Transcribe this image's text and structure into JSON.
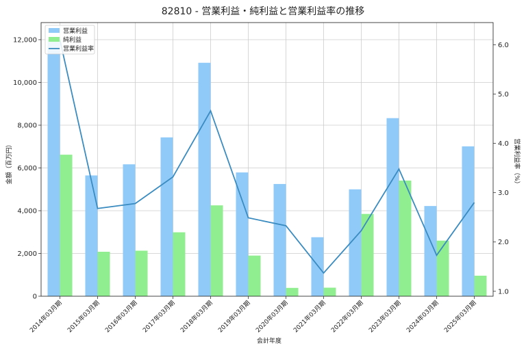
{
  "chart_data": {
    "type": "bar",
    "title": "82810 - 営業利益・純利益と営業利益率の推移",
    "xlabel": "会計年度",
    "ylabel": "金額（百万円）",
    "ylabel_right": "営業利益率（%）",
    "categories": [
      "2014年03月期",
      "2015年03月期",
      "2016年03月期",
      "2017年03月期",
      "2018年03月期",
      "2019年03月期",
      "2020年03月期",
      "2021年03月期",
      "2022年03月期",
      "2023年03月期",
      "2024年03月期",
      "2025年03月期"
    ],
    "series": [
      {
        "name": "営業利益",
        "type": "bar",
        "axis": "left",
        "color": "#90caf9",
        "values": [
          12000,
          5650,
          6170,
          7430,
          10920,
          5790,
          5250,
          2760,
          5000,
          8330,
          4220,
          7010
        ]
      },
      {
        "name": "純利益",
        "type": "bar",
        "axis": "left",
        "color": "#90ee90",
        "values": [
          6620,
          2080,
          2130,
          2990,
          4250,
          1900,
          390,
          400,
          3850,
          5410,
          2600,
          960
        ]
      },
      {
        "name": "営業利益率",
        "type": "line",
        "axis": "right",
        "color": "#3a8bc0",
        "values": [
          6.1,
          2.68,
          2.78,
          3.32,
          4.66,
          2.49,
          2.33,
          1.37,
          2.23,
          3.48,
          1.73,
          2.8
        ]
      }
    ],
    "ylim": [
      0,
      12800
    ],
    "yticks": [
      0,
      2000,
      4000,
      6000,
      8000,
      10000,
      12000
    ],
    "ytick_labels": [
      "0",
      "2,000",
      "4,000",
      "6,000",
      "8,000",
      "10,000",
      "12,000"
    ],
    "ylim_right": [
      0.9,
      6.45
    ],
    "yticks_right": [
      1.0,
      2.0,
      3.0,
      4.0,
      5.0,
      6.0
    ],
    "ytick_labels_right": [
      "1.0",
      "2.0",
      "3.0",
      "4.0",
      "5.0",
      "6.0"
    ],
    "grid": true,
    "legend_position": "top-left"
  }
}
